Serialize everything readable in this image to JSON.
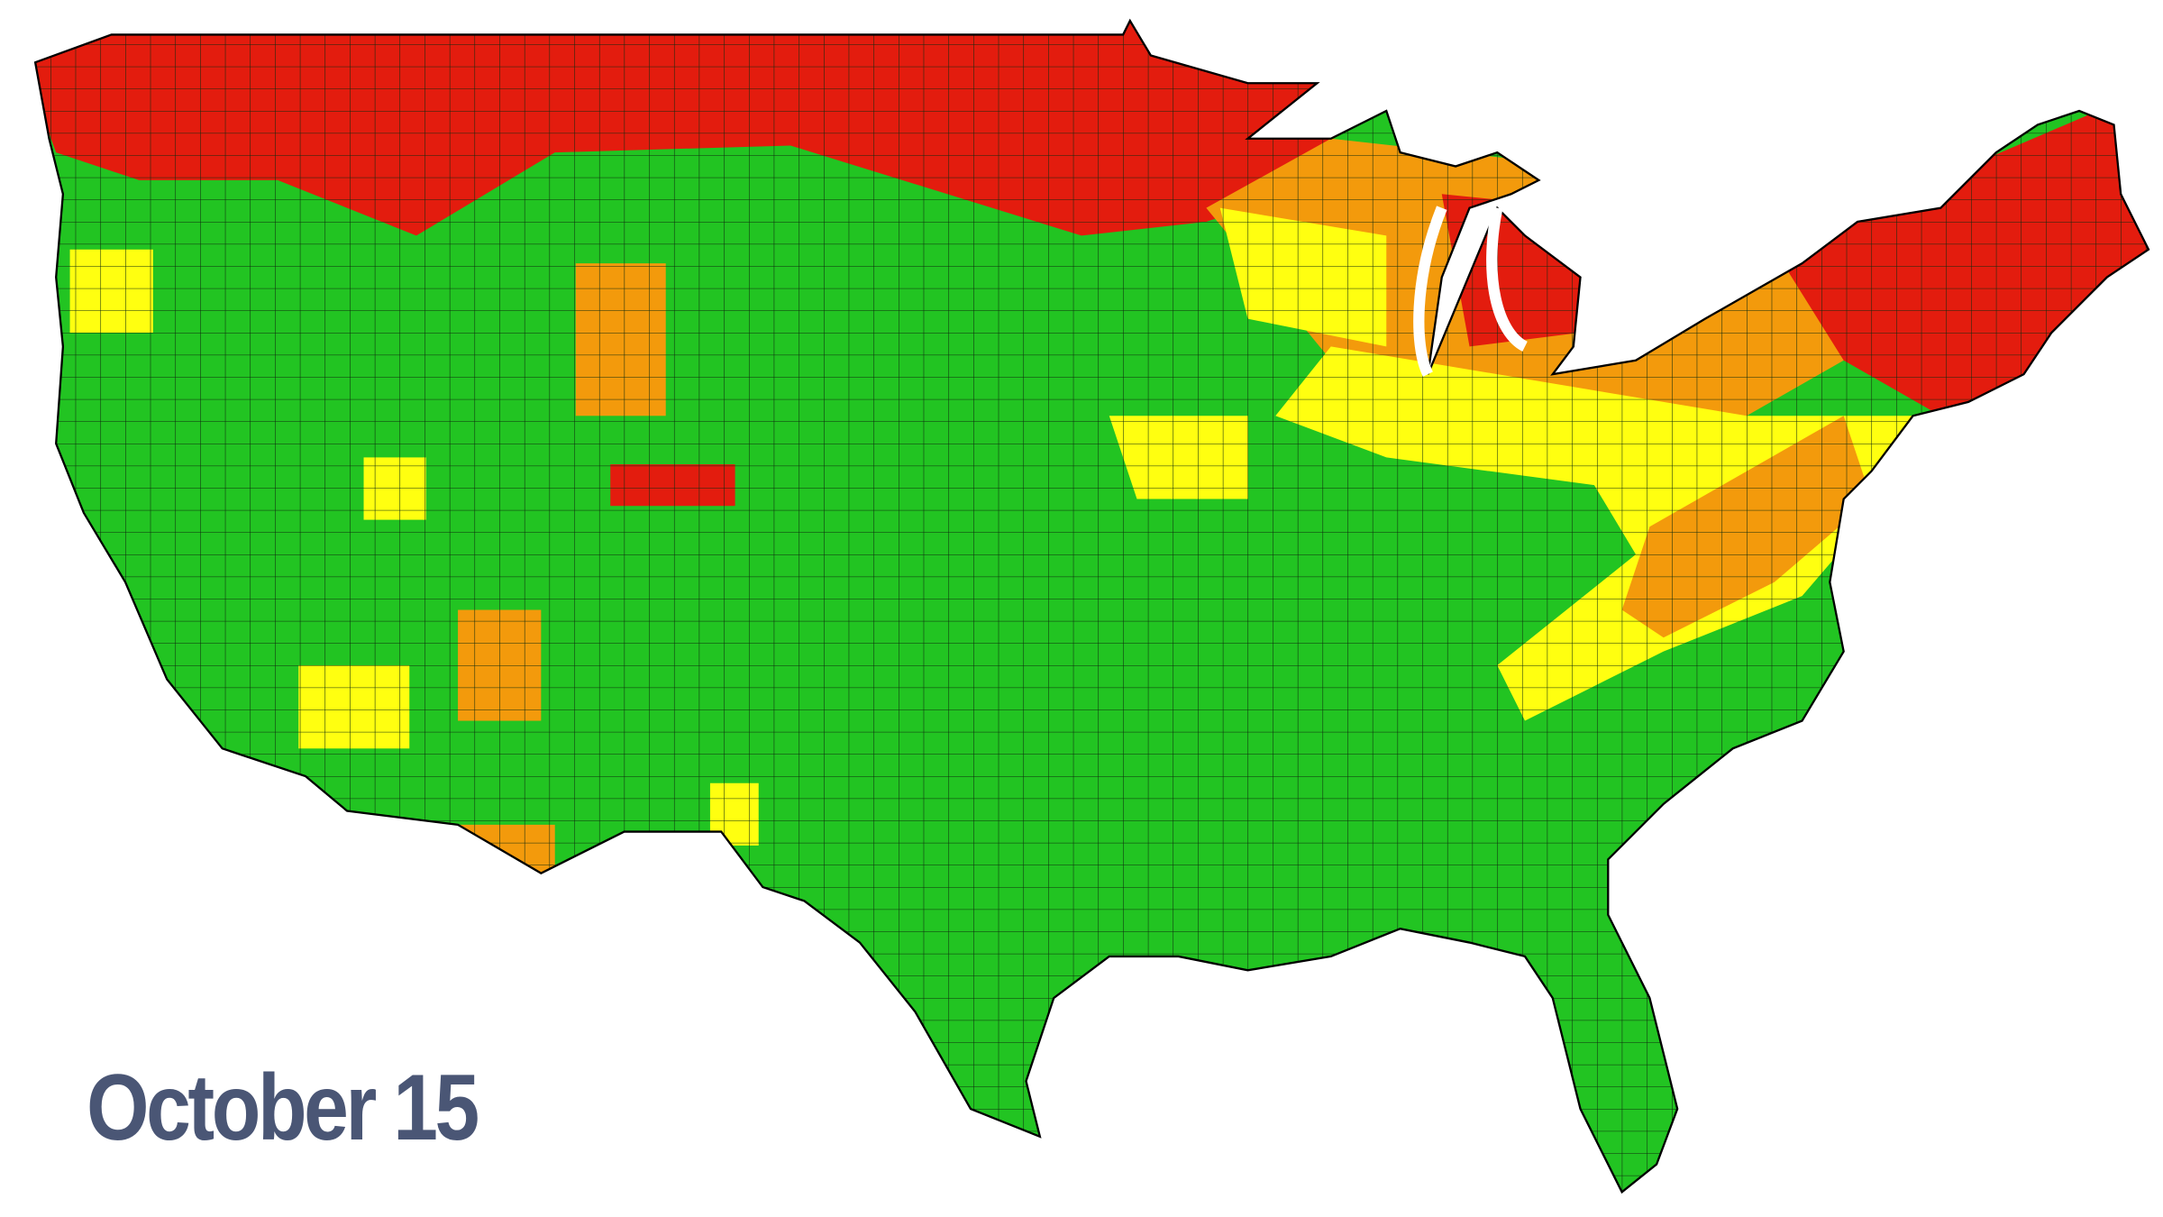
{
  "title": "October 15"
}
